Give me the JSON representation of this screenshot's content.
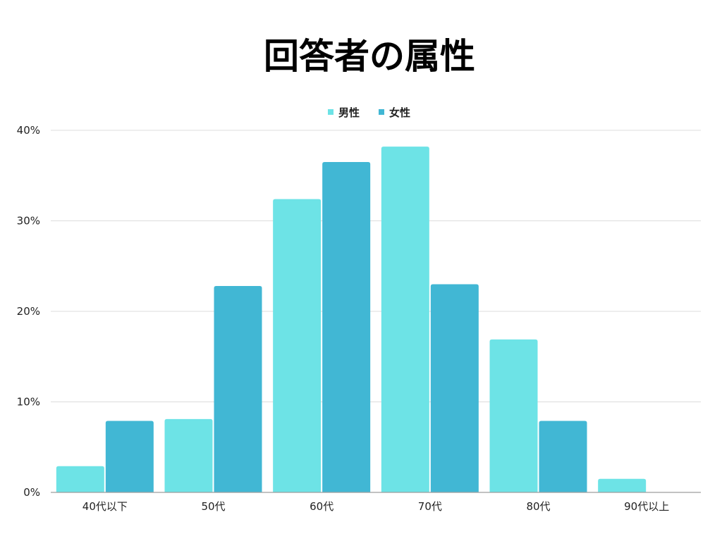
{
  "chart_data": {
    "type": "bar",
    "title": "回答者の属性",
    "categories": [
      "40代以下",
      "50代",
      "60代",
      "70代",
      "80代",
      "90代以上"
    ],
    "series": [
      {
        "name": "男性",
        "color": "#6de3e6",
        "values": [
          2.9,
          8.1,
          32.4,
          38.2,
          16.9,
          1.5
        ]
      },
      {
        "name": "女性",
        "color": "#41b7d4",
        "values": [
          7.9,
          22.8,
          36.5,
          23.0,
          7.9,
          0
        ]
      }
    ],
    "ylim": [
      0,
      40
    ],
    "yticks": [
      "0%",
      "10%",
      "20%",
      "30%",
      "40%"
    ],
    "ytick_values": [
      0,
      10,
      20,
      30,
      40
    ],
    "grid": true,
    "legend_position": "top-center"
  }
}
